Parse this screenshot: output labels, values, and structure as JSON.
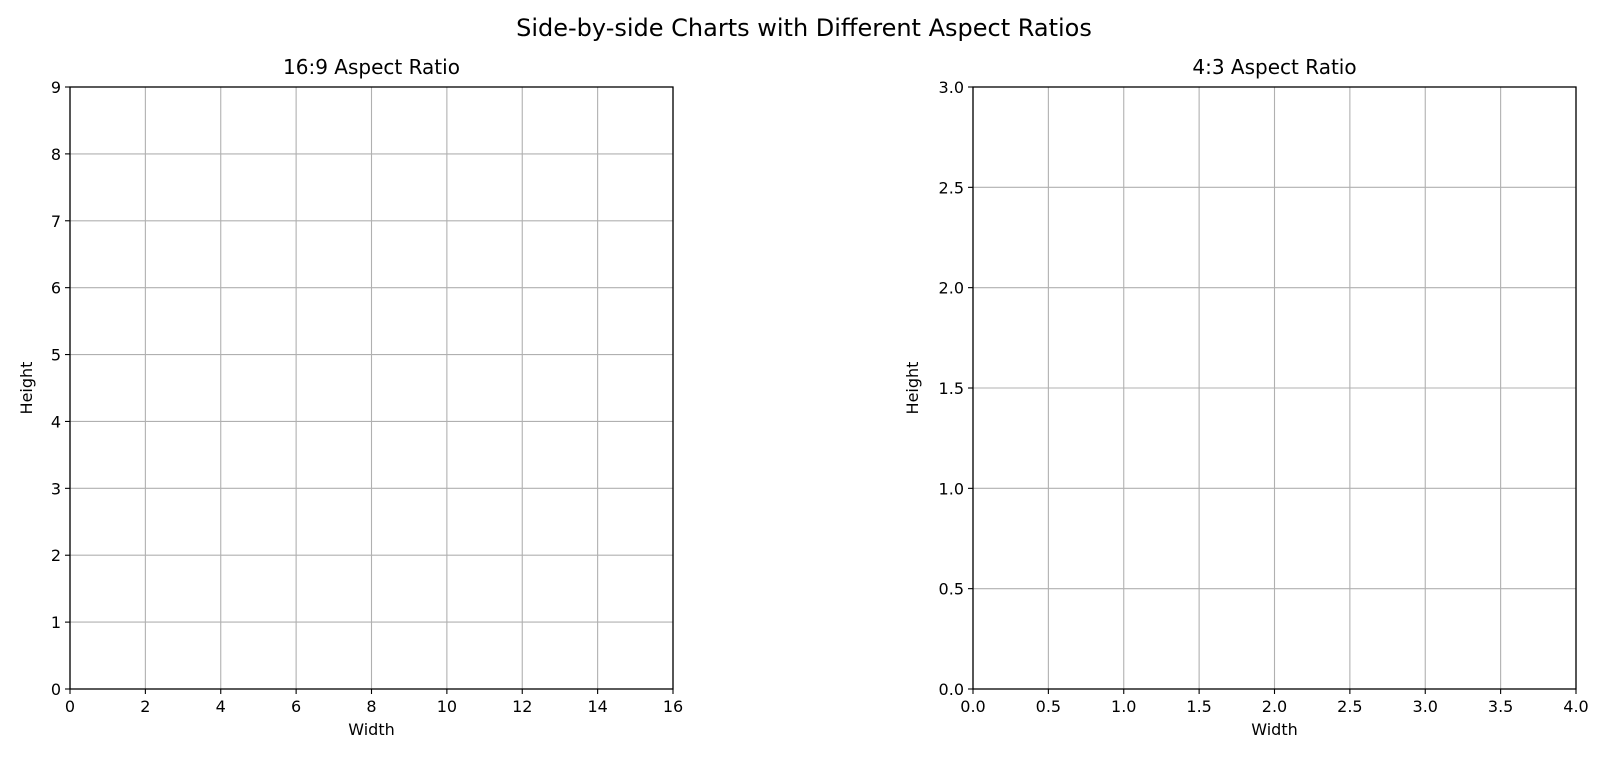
{
  "suptitle": "Side-by-side Charts with Different Aspect Ratios",
  "colors": {
    "grid": "#b0b0b0",
    "spine": "#000000",
    "text": "#000000",
    "background": "#ffffff"
  },
  "chart_data": [
    {
      "type": "line",
      "title": "16:9 Aspect Ratio",
      "xlabel": "Width",
      "ylabel": "Height",
      "xlim": [
        0,
        16
      ],
      "ylim": [
        0,
        9
      ],
      "grid": true,
      "series": [],
      "xticks": [
        0,
        2,
        4,
        6,
        8,
        10,
        12,
        14,
        16
      ],
      "yticks": [
        0,
        1,
        2,
        3,
        4,
        5,
        6,
        7,
        8,
        9
      ],
      "xtick_labels": [
        "0",
        "2",
        "4",
        "6",
        "8",
        "10",
        "12",
        "14",
        "16"
      ],
      "ytick_labels": [
        "0",
        "1",
        "2",
        "3",
        "4",
        "5",
        "6",
        "7",
        "8",
        "9"
      ]
    },
    {
      "type": "line",
      "title": "4:3 Aspect Ratio",
      "xlabel": "Width",
      "ylabel": "Height",
      "xlim": [
        0,
        4
      ],
      "ylim": [
        0,
        3
      ],
      "grid": true,
      "series": [],
      "xticks": [
        0,
        0.5,
        1,
        1.5,
        2,
        2.5,
        3,
        3.5,
        4
      ],
      "yticks": [
        0,
        0.5,
        1,
        1.5,
        2,
        2.5,
        3
      ],
      "xtick_labels": [
        "0.0",
        "0.5",
        "1.0",
        "1.5",
        "2.0",
        "2.5",
        "3.0",
        "3.5",
        "4.0"
      ],
      "ytick_labels": [
        "0.0",
        "0.5",
        "1.0",
        "1.5",
        "2.0",
        "2.5",
        "3.0"
      ]
    }
  ]
}
